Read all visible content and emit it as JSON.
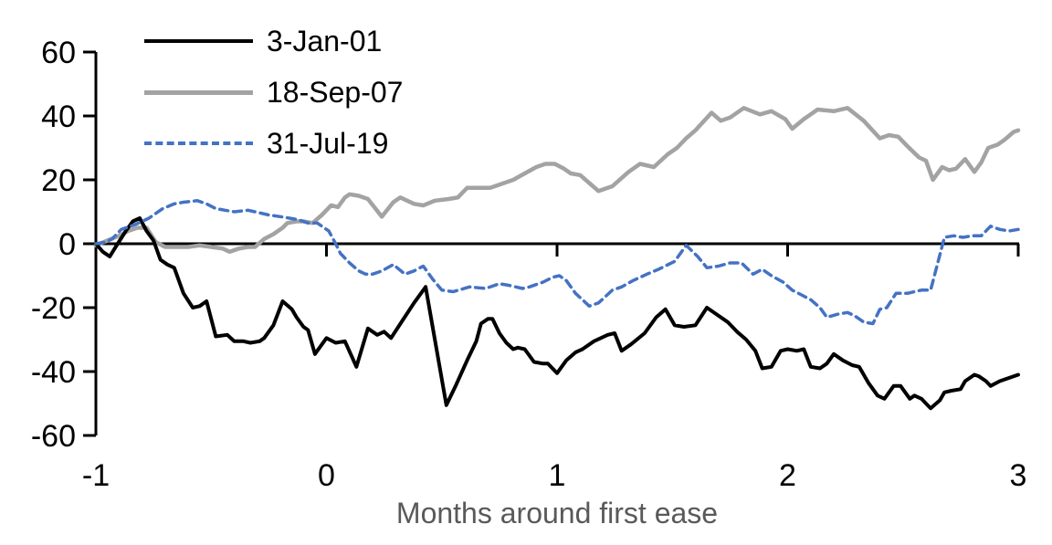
{
  "chart_data": {
    "type": "line",
    "title": "",
    "xlabel": "Months around first ease",
    "grid": false,
    "legend_position": "top-left-inside",
    "background_color": "#ffffff",
    "axis_color": "#000000",
    "xlabel_color": "#595959",
    "x_axis": {
      "range": [
        -1,
        3
      ],
      "ticks": [
        {
          "v": -1,
          "label": "-1",
          "mark": false
        },
        {
          "v": 0,
          "label": "0",
          "mark": true
        },
        {
          "v": 1,
          "label": "1",
          "mark": true
        },
        {
          "v": 2,
          "label": "2",
          "mark": true
        },
        {
          "v": 3,
          "label": "3",
          "mark": true
        }
      ]
    },
    "y_axis": {
      "range": [
        -60,
        60
      ],
      "ticks": [
        {
          "v": 60,
          "label": "60"
        },
        {
          "v": 40,
          "label": "40"
        },
        {
          "v": 20,
          "label": "20"
        },
        {
          "v": 0,
          "label": "0"
        },
        {
          "v": -20,
          "label": "-20"
        },
        {
          "v": -40,
          "label": "-40"
        },
        {
          "v": -60,
          "label": "-60"
        }
      ]
    },
    "series": [
      {
        "name": "3-Jan-01",
        "color": "#000000",
        "style": "solid",
        "width": 4,
        "zorder": 2,
        "points": [
          [
            -1.0,
            0
          ],
          [
            -0.97,
            -2.5
          ],
          [
            -0.94,
            -4
          ],
          [
            -0.91,
            -0.5
          ],
          [
            -0.87,
            4
          ],
          [
            -0.84,
            7
          ],
          [
            -0.81,
            8
          ],
          [
            -0.78,
            4
          ],
          [
            -0.75,
            1
          ],
          [
            -0.72,
            -5
          ],
          [
            -0.69,
            -6.5
          ],
          [
            -0.66,
            -7.5
          ],
          [
            -0.62,
            -15.5
          ],
          [
            -0.58,
            -20
          ],
          [
            -0.55,
            -19.5
          ],
          [
            -0.52,
            -18
          ],
          [
            -0.48,
            -29
          ],
          [
            -0.43,
            -28.5
          ],
          [
            -0.4,
            -30.5
          ],
          [
            -0.36,
            -30.5
          ],
          [
            -0.33,
            -31
          ],
          [
            -0.29,
            -30.5
          ],
          [
            -0.27,
            -29.5
          ],
          [
            -0.23,
            -25.5
          ],
          [
            -0.19,
            -18
          ],
          [
            -0.15,
            -20.5
          ],
          [
            -0.13,
            -23
          ],
          [
            -0.1,
            -26
          ],
          [
            -0.08,
            -27
          ],
          [
            -0.05,
            -34.5
          ],
          [
            0.0,
            -29.5
          ],
          [
            0.04,
            -31
          ],
          [
            0.08,
            -30.5
          ],
          [
            0.13,
            -38.5
          ],
          [
            0.18,
            -26.5
          ],
          [
            0.22,
            -28.5
          ],
          [
            0.25,
            -27.5
          ],
          [
            0.28,
            -29.5
          ],
          [
            0.33,
            -24
          ],
          [
            0.38,
            -18.5
          ],
          [
            0.43,
            -13.5
          ],
          [
            0.47,
            -30
          ],
          [
            0.52,
            -50.5
          ],
          [
            0.56,
            -44.5
          ],
          [
            0.61,
            -36.5
          ],
          [
            0.65,
            -30.5
          ],
          [
            0.67,
            -25
          ],
          [
            0.7,
            -23.5
          ],
          [
            0.72,
            -23.5
          ],
          [
            0.75,
            -28
          ],
          [
            0.78,
            -31
          ],
          [
            0.81,
            -33
          ],
          [
            0.83,
            -32.5
          ],
          [
            0.86,
            -33
          ],
          [
            0.9,
            -37
          ],
          [
            0.94,
            -37.5
          ],
          [
            0.96,
            -37.5
          ],
          [
            1.0,
            -40.5
          ],
          [
            1.04,
            -36.5
          ],
          [
            1.08,
            -34
          ],
          [
            1.11,
            -33
          ],
          [
            1.16,
            -30.5
          ],
          [
            1.22,
            -28.5
          ],
          [
            1.25,
            -28
          ],
          [
            1.28,
            -33.5
          ],
          [
            1.32,
            -31.5
          ],
          [
            1.38,
            -28
          ],
          [
            1.43,
            -23
          ],
          [
            1.47,
            -20.5
          ],
          [
            1.51,
            -25.5
          ],
          [
            1.55,
            -26
          ],
          [
            1.6,
            -25.5
          ],
          [
            1.65,
            -20
          ],
          [
            1.69,
            -22
          ],
          [
            1.74,
            -24.5
          ],
          [
            1.78,
            -27.5
          ],
          [
            1.82,
            -30
          ],
          [
            1.86,
            -33.5
          ],
          [
            1.89,
            -39
          ],
          [
            1.93,
            -38.5
          ],
          [
            1.97,
            -33.5
          ],
          [
            2.0,
            -33
          ],
          [
            2.04,
            -33.5
          ],
          [
            2.07,
            -33
          ],
          [
            2.1,
            -38.5
          ],
          [
            2.14,
            -39
          ],
          [
            2.17,
            -37.5
          ],
          [
            2.2,
            -34.5
          ],
          [
            2.24,
            -36.5
          ],
          [
            2.28,
            -38
          ],
          [
            2.31,
            -38.5
          ],
          [
            2.35,
            -43.5
          ],
          [
            2.39,
            -47.5
          ],
          [
            2.42,
            -48.5
          ],
          [
            2.46,
            -44.5
          ],
          [
            2.49,
            -44.5
          ],
          [
            2.53,
            -48.5
          ],
          [
            2.55,
            -47.5
          ],
          [
            2.58,
            -48.5
          ],
          [
            2.62,
            -51.5
          ],
          [
            2.66,
            -49
          ],
          [
            2.68,
            -46.5
          ],
          [
            2.71,
            -46
          ],
          [
            2.75,
            -45.5
          ],
          [
            2.77,
            -43
          ],
          [
            2.81,
            -41
          ],
          [
            2.83,
            -41.5
          ],
          [
            2.86,
            -43
          ],
          [
            2.88,
            -44.5
          ],
          [
            2.92,
            -43
          ],
          [
            2.96,
            -42
          ],
          [
            3.0,
            -41
          ]
        ]
      },
      {
        "name": "18-Sep-07",
        "color": "#a3a3a3",
        "style": "solid",
        "width": 4.5,
        "zorder": 1,
        "points": [
          [
            -1.0,
            -0.5
          ],
          [
            -0.95,
            1
          ],
          [
            -0.9,
            2.5
          ],
          [
            -0.86,
            4
          ],
          [
            -0.82,
            5
          ],
          [
            -0.78,
            5
          ],
          [
            -0.74,
            0.5
          ],
          [
            -0.7,
            -1
          ],
          [
            -0.65,
            -1
          ],
          [
            -0.6,
            -1
          ],
          [
            -0.55,
            -0.5
          ],
          [
            -0.5,
            -1
          ],
          [
            -0.45,
            -1.5
          ],
          [
            -0.42,
            -2.5
          ],
          [
            -0.38,
            -1.5
          ],
          [
            -0.34,
            -1
          ],
          [
            -0.31,
            -1
          ],
          [
            -0.27,
            1.5
          ],
          [
            -0.23,
            3
          ],
          [
            -0.19,
            5
          ],
          [
            -0.17,
            6.5
          ],
          [
            -0.13,
            7
          ],
          [
            -0.1,
            7
          ],
          [
            -0.06,
            6.5
          ],
          [
            -0.02,
            9
          ],
          [
            0.02,
            12
          ],
          [
            0.05,
            11.5
          ],
          [
            0.08,
            14.5
          ],
          [
            0.1,
            15.5
          ],
          [
            0.14,
            15
          ],
          [
            0.18,
            14
          ],
          [
            0.24,
            8.5
          ],
          [
            0.29,
            13
          ],
          [
            0.32,
            14.5
          ],
          [
            0.38,
            12.5
          ],
          [
            0.42,
            12
          ],
          [
            0.47,
            13.5
          ],
          [
            0.53,
            14
          ],
          [
            0.57,
            14.5
          ],
          [
            0.61,
            17.5
          ],
          [
            0.66,
            17.5
          ],
          [
            0.71,
            17.5
          ],
          [
            0.75,
            18.5
          ],
          [
            0.81,
            20
          ],
          [
            0.86,
            22
          ],
          [
            0.91,
            24
          ],
          [
            0.95,
            25
          ],
          [
            0.99,
            25
          ],
          [
            1.03,
            23.5
          ],
          [
            1.06,
            22
          ],
          [
            1.1,
            21.5
          ],
          [
            1.14,
            19
          ],
          [
            1.18,
            16.5
          ],
          [
            1.24,
            18
          ],
          [
            1.31,
            22.5
          ],
          [
            1.36,
            25
          ],
          [
            1.42,
            24
          ],
          [
            1.48,
            28
          ],
          [
            1.52,
            30
          ],
          [
            1.56,
            33
          ],
          [
            1.6,
            35.5
          ],
          [
            1.67,
            41
          ],
          [
            1.71,
            38.5
          ],
          [
            1.75,
            39.5
          ],
          [
            1.81,
            42.5
          ],
          [
            1.88,
            40.5
          ],
          [
            1.93,
            41.5
          ],
          [
            1.99,
            39
          ],
          [
            2.02,
            36
          ],
          [
            2.07,
            39
          ],
          [
            2.13,
            42
          ],
          [
            2.2,
            41.5
          ],
          [
            2.26,
            42.5
          ],
          [
            2.33,
            38.5
          ],
          [
            2.4,
            33
          ],
          [
            2.44,
            34
          ],
          [
            2.48,
            33.5
          ],
          [
            2.52,
            30.5
          ],
          [
            2.57,
            27
          ],
          [
            2.6,
            26
          ],
          [
            2.63,
            20
          ],
          [
            2.67,
            24
          ],
          [
            2.7,
            23
          ],
          [
            2.73,
            23.5
          ],
          [
            2.77,
            26.5
          ],
          [
            2.81,
            22.5
          ],
          [
            2.84,
            25.5
          ],
          [
            2.87,
            30
          ],
          [
            2.91,
            31
          ],
          [
            2.94,
            32.5
          ],
          [
            2.98,
            35
          ],
          [
            3.0,
            35.5
          ]
        ]
      },
      {
        "name": "31-Jul-19",
        "color": "#4472c4",
        "style": "dashed",
        "width": 3.5,
        "zorder": 3,
        "points": [
          [
            -1.0,
            0
          ],
          [
            -0.96,
            0.5
          ],
          [
            -0.93,
            1.5
          ],
          [
            -0.89,
            4.5
          ],
          [
            -0.83,
            6
          ],
          [
            -0.77,
            8
          ],
          [
            -0.71,
            11
          ],
          [
            -0.66,
            12.5
          ],
          [
            -0.62,
            13
          ],
          [
            -0.56,
            13.5
          ],
          [
            -0.52,
            12.5
          ],
          [
            -0.48,
            11
          ],
          [
            -0.44,
            10.5
          ],
          [
            -0.4,
            10
          ],
          [
            -0.34,
            10.5
          ],
          [
            -0.31,
            10
          ],
          [
            -0.25,
            9
          ],
          [
            -0.2,
            8.5
          ],
          [
            -0.16,
            8
          ],
          [
            -0.12,
            7.5
          ],
          [
            -0.08,
            6.5
          ],
          [
            -0.04,
            6.5
          ],
          [
            0.01,
            4
          ],
          [
            0.04,
            0
          ],
          [
            0.06,
            -3
          ],
          [
            0.1,
            -6
          ],
          [
            0.14,
            -8.5
          ],
          [
            0.17,
            -9.5
          ],
          [
            0.2,
            -9.5
          ],
          [
            0.24,
            -8.5
          ],
          [
            0.29,
            -6.5
          ],
          [
            0.34,
            -9.5
          ],
          [
            0.38,
            -8.5
          ],
          [
            0.42,
            -7
          ],
          [
            0.46,
            -11
          ],
          [
            0.5,
            -14.5
          ],
          [
            0.55,
            -15
          ],
          [
            0.62,
            -13.5
          ],
          [
            0.69,
            -14
          ],
          [
            0.75,
            -12.5
          ],
          [
            0.79,
            -13
          ],
          [
            0.85,
            -14
          ],
          [
            0.88,
            -13.5
          ],
          [
            0.94,
            -12
          ],
          [
            0.98,
            -10.5
          ],
          [
            1.01,
            -10
          ],
          [
            1.04,
            -11.5
          ],
          [
            1.08,
            -15.5
          ],
          [
            1.14,
            -19.5
          ],
          [
            1.18,
            -18.5
          ],
          [
            1.24,
            -14.5
          ],
          [
            1.28,
            -13.5
          ],
          [
            1.33,
            -11.5
          ],
          [
            1.39,
            -9.5
          ],
          [
            1.44,
            -8
          ],
          [
            1.51,
            -5.5
          ],
          [
            1.56,
            -0.5
          ],
          [
            1.61,
            -4
          ],
          [
            1.65,
            -7.5
          ],
          [
            1.7,
            -7
          ],
          [
            1.75,
            -6
          ],
          [
            1.8,
            -6
          ],
          [
            1.85,
            -9.5
          ],
          [
            1.89,
            -8
          ],
          [
            1.93,
            -10
          ],
          [
            1.98,
            -12
          ],
          [
            2.02,
            -14.5
          ],
          [
            2.06,
            -16
          ],
          [
            2.1,
            -17.5
          ],
          [
            2.14,
            -20
          ],
          [
            2.17,
            -23
          ],
          [
            2.22,
            -22
          ],
          [
            2.26,
            -21.5
          ],
          [
            2.29,
            -22.5
          ],
          [
            2.33,
            -24.5
          ],
          [
            2.37,
            -25
          ],
          [
            2.4,
            -20.5
          ],
          [
            2.43,
            -20
          ],
          [
            2.47,
            -15.5
          ],
          [
            2.52,
            -15.5
          ],
          [
            2.55,
            -15
          ],
          [
            2.58,
            -14.5
          ],
          [
            2.62,
            -14.5
          ],
          [
            2.68,
            2
          ],
          [
            2.72,
            2.5
          ],
          [
            2.76,
            2
          ],
          [
            2.8,
            2.5
          ],
          [
            2.84,
            2.5
          ],
          [
            2.88,
            5.5
          ],
          [
            2.92,
            4.5
          ],
          [
            2.96,
            4
          ],
          [
            3.0,
            4.5
          ]
        ]
      }
    ]
  }
}
